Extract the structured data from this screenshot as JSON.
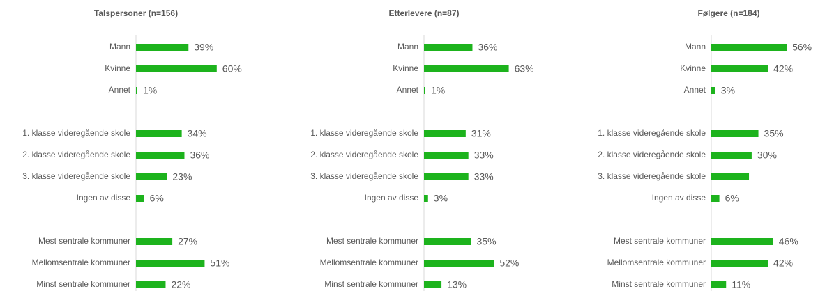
{
  "chart_data": [
    {
      "type": "bar",
      "title": "Talspersoner (n=156)",
      "color": "#1db31d",
      "xlim": [
        0,
        100
      ],
      "categories": [
        "Mann",
        "Kvinne",
        "Annet",
        null,
        "1. klasse videregående skole",
        "2. klasse videregående skole",
        "3. klasse videregående skole",
        "Ingen av disse",
        null,
        "Mest sentrale kommuner",
        "Mellomsentrale kommuner",
        "Minst sentrale kommuner"
      ],
      "values": [
        39,
        60,
        1,
        null,
        34,
        36,
        23,
        6,
        null,
        27,
        51,
        22
      ],
      "value_labels": [
        "39%",
        "60%",
        "1%",
        null,
        "34%",
        "36%",
        "23%",
        "6%",
        null,
        "27%",
        "51%",
        "22%"
      ]
    },
    {
      "type": "bar",
      "title": "Etterlevere (n=87)",
      "color": "#1db31d",
      "xlim": [
        0,
        100
      ],
      "categories": [
        "Mann",
        "Kvinne",
        "Annet",
        null,
        "1. klasse videregående skole",
        "2. klasse videregående skole",
        "3. klasse videregående skole",
        "Ingen av disse",
        null,
        "Mest sentrale kommuner",
        "Mellomsentrale kommuner",
        "Minst sentrale kommuner"
      ],
      "values": [
        36,
        63,
        1,
        null,
        31,
        33,
        33,
        3,
        null,
        35,
        52,
        13
      ],
      "value_labels": [
        "36%",
        "63%",
        "1%",
        null,
        "31%",
        "33%",
        "33%",
        "3%",
        null,
        "35%",
        "52%",
        "13%"
      ]
    },
    {
      "type": "bar",
      "title": "Følgere (n=184)",
      "color": "#1db31d",
      "xlim": [
        0,
        100
      ],
      "categories": [
        "Mann",
        "Kvinne",
        "Annet",
        null,
        "1. klasse videregående skole",
        "2. klasse videregående skole",
        "3. klasse videregående skole",
        "Ingen av disse",
        null,
        "Mest sentrale kommuner",
        "Mellomsentrale kommuner",
        "Minst sentrale kommuner"
      ],
      "values": [
        56,
        42,
        3,
        null,
        35,
        30,
        28,
        6,
        null,
        46,
        42,
        11
      ],
      "value_labels": [
        "56%",
        "42%",
        "3%",
        null,
        "35%",
        "30%",
        null,
        "6%",
        null,
        "46%",
        "42%",
        "11%"
      ]
    }
  ]
}
